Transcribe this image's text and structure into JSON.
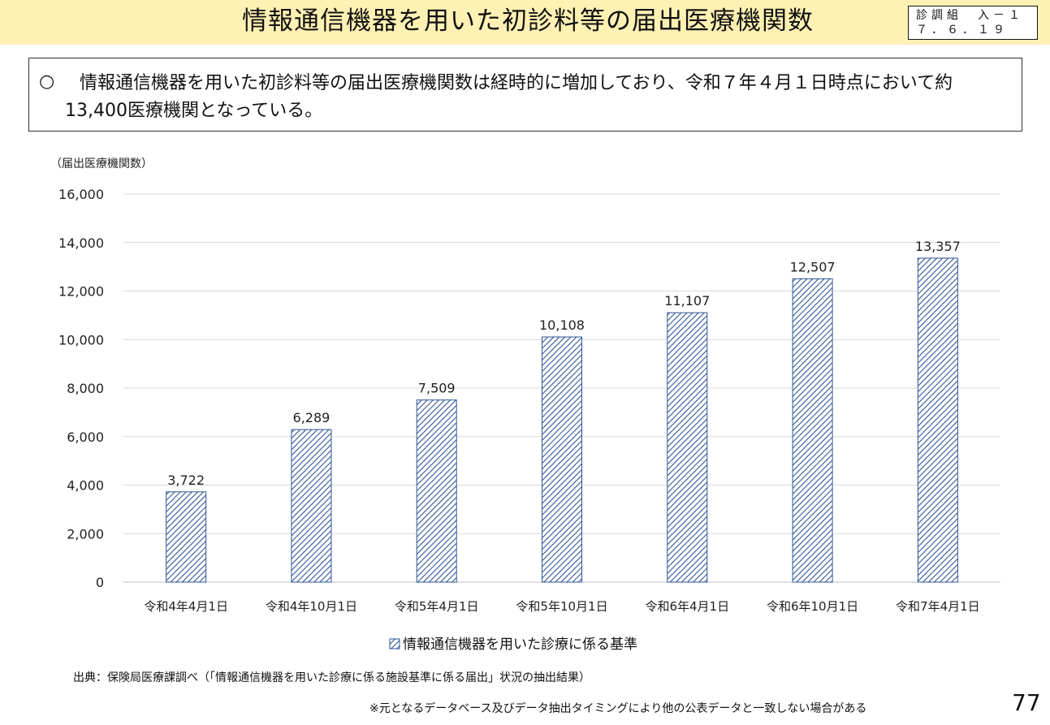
{
  "header": {
    "title": "情報通信機器を用いた初診料等の届出医療機関数",
    "doc_code_line1": "診調組　入－１",
    "doc_code_line2": "７．６．１９",
    "band_color": "#fff1b3"
  },
  "summary": {
    "bullet": "○",
    "text": "情報通信機器を用いた初診料等の届出医療機関数は経時的に増加しており、令和７年４月１日時点において約13,400医療機関となっている。"
  },
  "chart_data": {
    "type": "bar",
    "title": "",
    "ylabel": "（届出医療機関数）",
    "xlabel": "",
    "categories": [
      "令和4年4月1日",
      "令和4年10月1日",
      "令和5年4月1日",
      "令和5年10月1日",
      "令和6年4月1日",
      "令和6年10月1日",
      "令和7年4月1日"
    ],
    "series": [
      {
        "name": "情報通信機器を用いた診療に係る基準",
        "values": [
          3722,
          6289,
          7509,
          10108,
          11107,
          12507,
          13357
        ],
        "color": "#2f5597",
        "pattern": "diagonal-hatch"
      }
    ],
    "value_labels": [
      "3,722",
      "6,289",
      "7,509",
      "10,108",
      "11,107",
      "12,507",
      "13,357"
    ],
    "ylim": [
      0,
      16000
    ],
    "ytick_labels": [
      "0",
      "2,000",
      "4,000",
      "6,000",
      "8,000",
      "10,000",
      "12,000",
      "14,000",
      "16,000"
    ],
    "ytick_values": [
      0,
      2000,
      4000,
      6000,
      8000,
      10000,
      12000,
      14000,
      16000
    ],
    "grid": true,
    "legend_position": "bottom"
  },
  "footer": {
    "source": "出典：保険局医療課調べ（「情報通信機器を用いた診療に係る施設基準に係る届出」状況の抽出結果）",
    "disclaimer": "※元となるデータベース及びデータ抽出タイミングにより他の公表データと一致しない場合がある",
    "page_number": "77"
  }
}
